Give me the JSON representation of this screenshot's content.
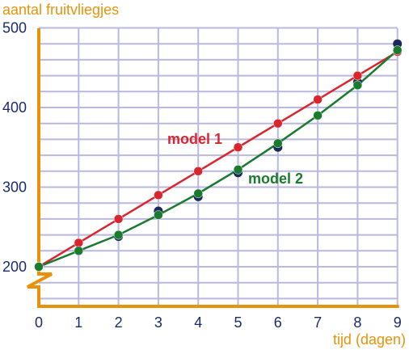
{
  "chart_data": {
    "type": "line",
    "xlabel": "tijd (dagen)",
    "ylabel": "aantal fruitvliegjes",
    "x": [
      0,
      1,
      2,
      3,
      4,
      5,
      6,
      7,
      8,
      9
    ],
    "xlim": [
      0,
      9
    ],
    "ylim": [
      200,
      500
    ],
    "axis_break": "y-axis below 200",
    "x_ticks": [
      "0",
      "1",
      "2",
      "3",
      "4",
      "5",
      "6",
      "7",
      "8",
      "9"
    ],
    "y_ticks": [
      {
        "value": 200,
        "label": "200"
      },
      {
        "value": 300,
        "label": "300"
      },
      {
        "value": 400,
        "label": "400"
      },
      {
        "value": 500,
        "label": "500"
      }
    ],
    "grid": true,
    "observed_points": {
      "x": [
        0,
        1,
        2,
        3,
        4,
        5,
        6,
        7,
        8,
        9
      ],
      "y": [
        200,
        220,
        238,
        270,
        288,
        318,
        350,
        390,
        432,
        480
      ],
      "color": "#1a2a5a"
    },
    "series": [
      {
        "name": "model 1",
        "color": "#d9262e",
        "values": [
          200,
          230,
          260,
          290,
          320,
          350,
          380,
          410,
          440,
          470
        ]
      },
      {
        "name": "model 2",
        "color": "#1a7a2e",
        "values": [
          200,
          220,
          240,
          265,
          292,
          322,
          355,
          390,
          428,
          472
        ]
      }
    ]
  },
  "colors": {
    "axis": "#e8920c",
    "grid": "#b8b8e0",
    "tick_text": "#1a2a6c"
  }
}
